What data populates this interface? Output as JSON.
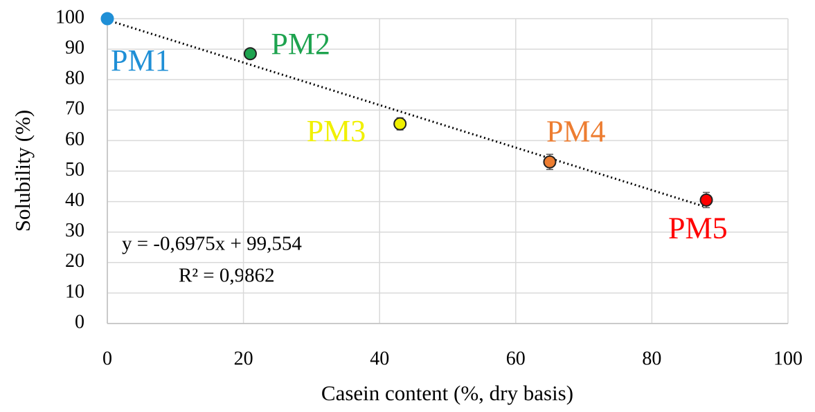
{
  "chart_data": {
    "type": "scatter",
    "x_label": "Casein content (%, dry basis)",
    "y_label": "Solubility (%)",
    "xlim": [
      0,
      100
    ],
    "xticks": [
      0,
      20,
      40,
      60,
      80,
      100
    ],
    "ylim": [
      0,
      100
    ],
    "yticks": [
      0,
      10,
      20,
      30,
      40,
      50,
      60,
      70,
      80,
      90,
      100
    ],
    "grid": true,
    "series": [
      {
        "name": "PM1",
        "color": "#1f8fd6",
        "x": [
          0
        ],
        "values": [
          100
        ],
        "errors": [
          0.5
        ]
      },
      {
        "name": "PM2",
        "color": "#1ea34f",
        "x": [
          21
        ],
        "values": [
          88.5
        ],
        "errors": [
          1
        ]
      },
      {
        "name": "PM3",
        "color": "#f0f000",
        "x": [
          43
        ],
        "values": [
          65.5
        ],
        "errors": [
          2
        ]
      },
      {
        "name": "PM4",
        "color": "#ed7d31",
        "x": [
          65
        ],
        "values": [
          53
        ],
        "errors": [
          2.5
        ]
      },
      {
        "name": "PM5",
        "color": "#ff0000",
        "x": [
          88
        ],
        "values": [
          40.5
        ],
        "errors": [
          2.5
        ]
      }
    ],
    "trendline": {
      "slope": -0.6975,
      "intercept": 99.554,
      "label": "y = -0,6975x + 99,554",
      "r2_label": "R² = 0,9862"
    }
  }
}
